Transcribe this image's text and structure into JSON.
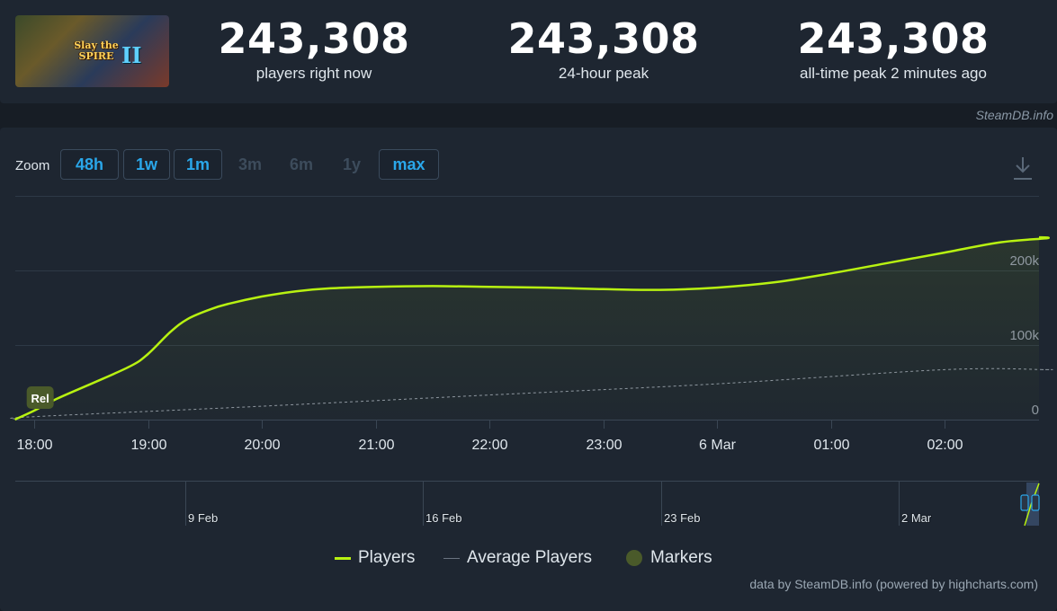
{
  "game": {
    "art_title_line1": "Slay the",
    "art_title_line2": "SPIRE",
    "art_roman": "II"
  },
  "stats": [
    {
      "value": "243,308",
      "label": "players right now"
    },
    {
      "value": "243,308",
      "label": "24-hour peak"
    },
    {
      "value": "243,308",
      "label": "all-time peak 2 minutes ago"
    }
  ],
  "credit_top": "SteamDB.info",
  "zoom": {
    "label": "Zoom",
    "buttons": [
      {
        "label": "48h",
        "enabled": true
      },
      {
        "label": "1w",
        "enabled": true
      },
      {
        "label": "1m",
        "enabled": true
      },
      {
        "label": "3m",
        "enabled": false
      },
      {
        "label": "6m",
        "enabled": false
      },
      {
        "label": "1y",
        "enabled": false
      },
      {
        "label": "max",
        "enabled": true
      }
    ],
    "download_icon": "download-icon"
  },
  "chart_data": {
    "type": "line",
    "x_tick_labels": [
      "18:00",
      "19:00",
      "20:00",
      "21:00",
      "22:00",
      "23:00",
      "6 Mar",
      "01:00",
      "02:00"
    ],
    "y_tick_labels": [
      "0",
      "100k",
      "200k"
    ],
    "ylim": [
      0,
      300000
    ],
    "grid": true,
    "x_hours_range": [
      -0.2,
      9.0
    ],
    "series": [
      {
        "name": "Players",
        "color": "#b8f211",
        "points": [
          [
            -0.17,
            0
          ],
          [
            0.0,
            12000
          ],
          [
            0.2,
            28000
          ],
          [
            0.5,
            48000
          ],
          [
            0.85,
            72000
          ],
          [
            1.0,
            88000
          ],
          [
            1.2,
            118000
          ],
          [
            1.35,
            135000
          ],
          [
            1.55,
            148000
          ],
          [
            1.7,
            155000
          ],
          [
            2.0,
            165000
          ],
          [
            2.3,
            172000
          ],
          [
            2.6,
            176000
          ],
          [
            3.0,
            178000
          ],
          [
            3.5,
            179000
          ],
          [
            4.0,
            178000
          ],
          [
            4.5,
            177000
          ],
          [
            5.0,
            175000
          ],
          [
            5.5,
            174000
          ],
          [
            6.0,
            177000
          ],
          [
            6.5,
            184000
          ],
          [
            7.0,
            196000
          ],
          [
            7.5,
            210000
          ],
          [
            8.0,
            224000
          ],
          [
            8.5,
            238000
          ],
          [
            8.9,
            243308
          ]
        ]
      },
      {
        "name": "Average Players",
        "color": "#8f98a0",
        "points": [
          [
            -0.17,
            1000
          ],
          [
            0.0,
            4000
          ],
          [
            2.0,
            18000
          ],
          [
            4.0,
            33000
          ],
          [
            6.0,
            48000
          ],
          [
            8.0,
            67000
          ],
          [
            8.9,
            67000
          ]
        ]
      }
    ],
    "markers": [
      {
        "label": "Rel",
        "x_hours": -0.05,
        "color": "#4a5a2a"
      }
    ],
    "navigator": {
      "labels": [
        "9 Feb",
        "16 Feb",
        "23 Feb",
        "2 Mar"
      ]
    }
  },
  "legend": {
    "items": [
      {
        "label": "Players",
        "color": "#b8f211"
      },
      {
        "label": "Average Players",
        "color": "#6a7380"
      },
      {
        "label": "Markers",
        "color": "#4a5a2a"
      }
    ]
  },
  "credit_bottom": "data by SteamDB.info (powered by highcharts.com)"
}
